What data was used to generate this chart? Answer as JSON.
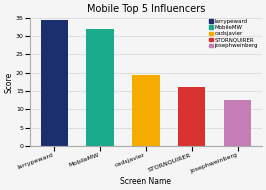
{
  "title": "Mobile Top 5 Influencers",
  "xlabel": "Screen Name",
  "ylabel": "Score",
  "categories": [
    "larrypeward",
    "MobileMW",
    "cadsjavier",
    "STORNQUIRER",
    "josephweinberg"
  ],
  "values": [
    34.5,
    32.0,
    19.5,
    16.0,
    12.5
  ],
  "bar_colors": [
    "#1b2e6e",
    "#1aaa8c",
    "#f5ab00",
    "#d93030",
    "#c47db5"
  ],
  "legend_labels": [
    "larrypeward",
    "MobileMW",
    "cadsjavier",
    "STORNQUIRER",
    "josephweinberg"
  ],
  "legend_colors": [
    "#1b2e6e",
    "#1aaa8c",
    "#f5ab00",
    "#d93030",
    "#c47db5"
  ],
  "ylim": [
    0,
    35
  ],
  "yticks": [
    0,
    5,
    10,
    15,
    20,
    25,
    30,
    35
  ],
  "background_color": "#f5f5f5",
  "title_fontsize": 7,
  "axis_fontsize": 5.5,
  "tick_fontsize": 4.5,
  "legend_fontsize": 4.0
}
